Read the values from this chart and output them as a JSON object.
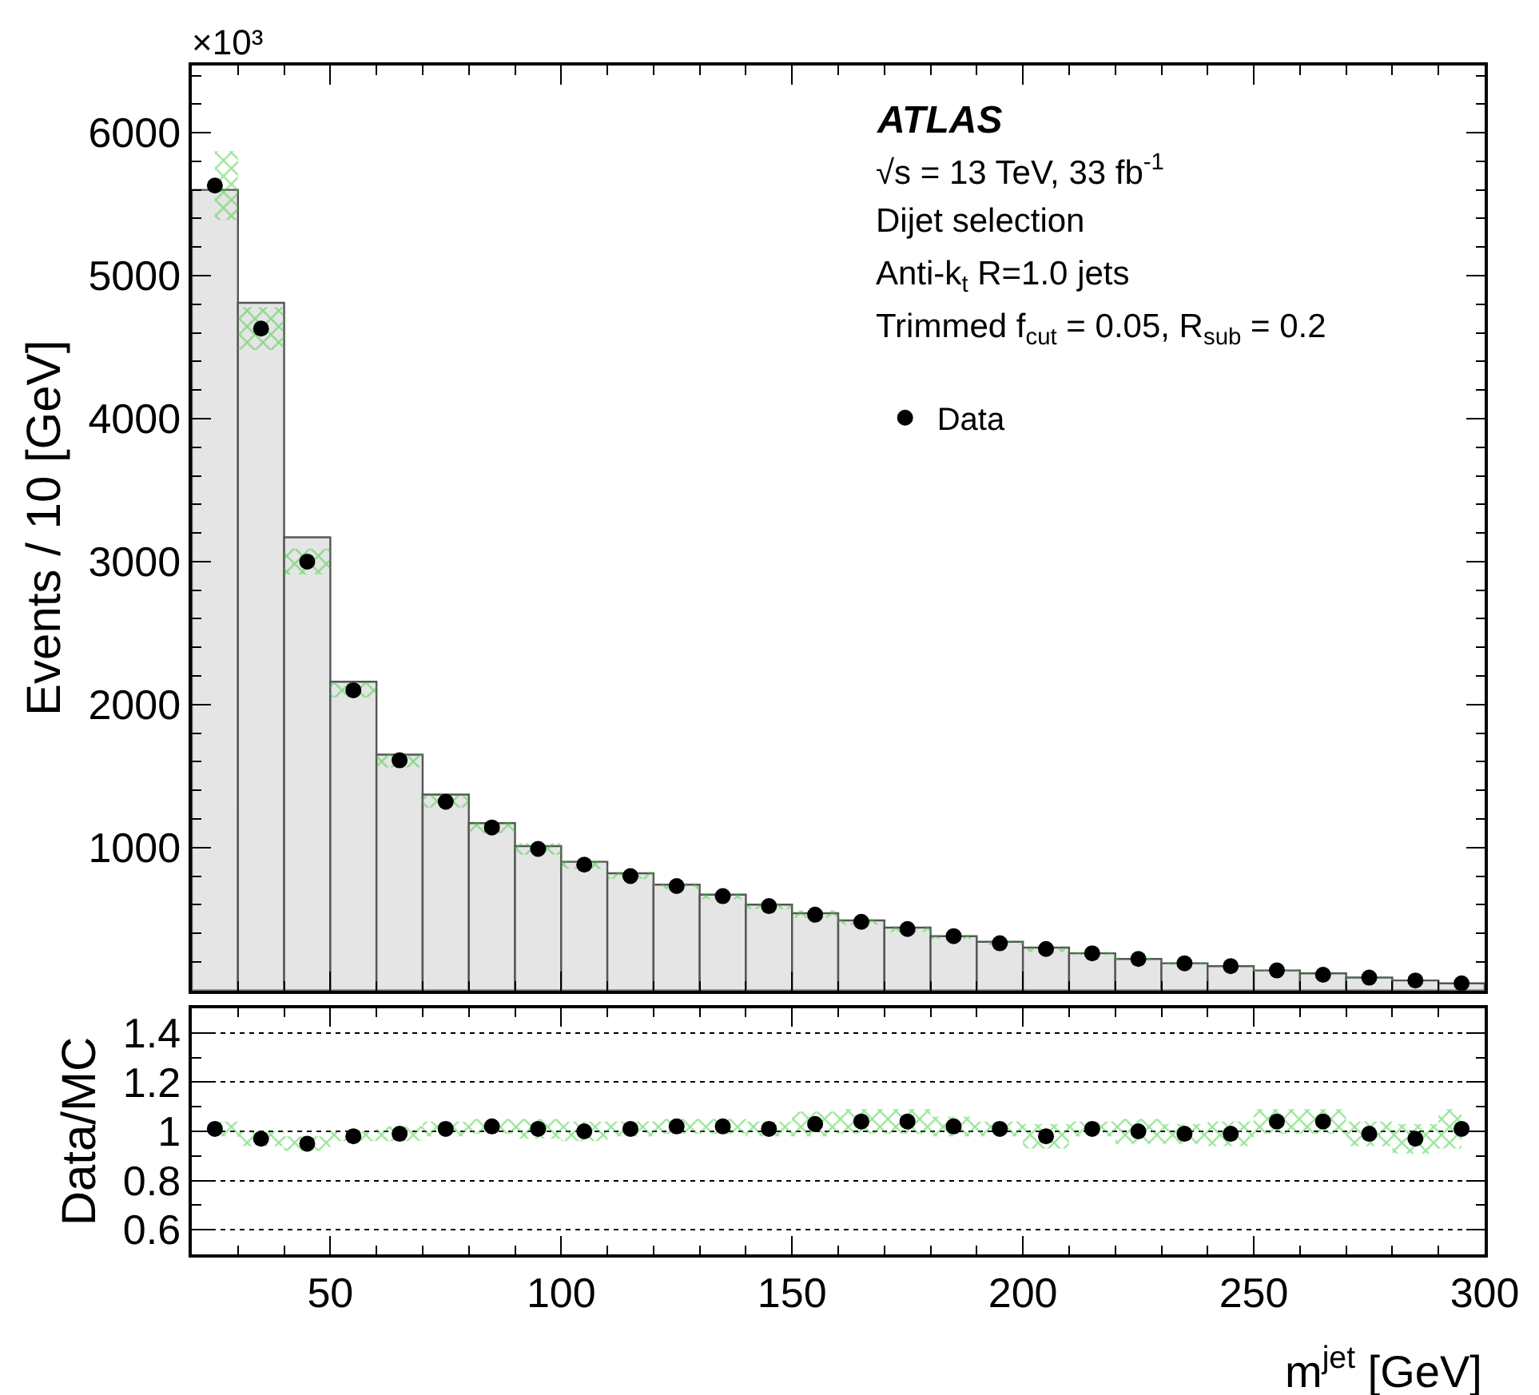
{
  "chart_data": [
    {
      "type": "scatter",
      "ylabel": "Events / 10 [GeV]",
      "xlim": [
        20,
        300
      ],
      "xticks": [
        50,
        100,
        150,
        200,
        250,
        300
      ],
      "ylim": [
        0,
        6470
      ],
      "yticks": [
        1000,
        2000,
        3000,
        4000,
        5000,
        6000
      ],
      "tick_labels": "y",
      "legend": "top right",
      "marker": "circle",
      "annotations": [
        "×10³",
        "ATLAS",
        "√s = 13 TeV, 33 fb$^{-1}$",
        "Dijet selection",
        "Anti-k$_{t}$ R=1.0 jets",
        "Trimmed f$_{cut}$ = 0.05, R$_{sub}$ = 0.2"
      ],
      "series": [
        {
          "type": "histogram",
          "color": "#e5e5e5",
          "bins": [
            20,
            30,
            40,
            50,
            60,
            70,
            80,
            90,
            100,
            110,
            120,
            130,
            140,
            150,
            160,
            170,
            180,
            190,
            200,
            210,
            220,
            230,
            240,
            250,
            260,
            270,
            280,
            290,
            300
          ],
          "values": [
            5600,
            4810,
            3170,
            2160,
            1650,
            1370,
            1170,
            1010,
            900,
            820,
            740,
            670,
            600,
            540,
            490,
            440,
            380,
            340,
            300,
            260,
            220,
            190,
            170,
            140,
            120,
            90,
            70,
            50
          ]
        },
        {
          "name": "Data",
          "color": "#000000",
          "x": [
            25,
            35,
            45,
            55,
            65,
            75,
            85,
            95,
            105,
            115,
            125,
            135,
            145,
            155,
            165,
            175,
            185,
            195,
            205,
            215,
            225,
            235,
            245,
            255,
            265,
            275,
            285,
            295
          ],
          "values": [
            5630,
            4630,
            3000,
            2100,
            1610,
            1320,
            1140,
            990,
            880,
            800,
            730,
            660,
            590,
            530,
            480,
            430,
            380,
            330,
            290,
            260,
            220,
            190,
            170,
            140,
            110,
            90,
            70,
            50
          ],
          "lower": [
            5390,
            4480,
            2910,
            2050,
            1560,
            1280,
            1100,
            950,
            850,
            780,
            710,
            640,
            570,
            510,
            460,
            410,
            360,
            320,
            270,
            250,
            210,
            180,
            160,
            130,
            110,
            80,
            70,
            50
          ],
          "upper": [
            5870,
            4780,
            3090,
            2150,
            1660,
            1360,
            1180,
            1030,
            910,
            830,
            750,
            680,
            610,
            560,
            500,
            450,
            390,
            340,
            300,
            270,
            230,
            200,
            170,
            150,
            120,
            90,
            70,
            50
          ]
        }
      ]
    },
    {
      "type": "scatter",
      "ylabel": "Data/MC",
      "xlabel": "m$^{jet}$ [GeV]",
      "xlim": [
        20,
        300
      ],
      "xticks": [
        50,
        100,
        150,
        200,
        250,
        300
      ],
      "ylim": [
        0.5,
        1.5
      ],
      "yticks": [
        0.6,
        0.8,
        1,
        1.2,
        1.4
      ],
      "grid": "y",
      "marker": "circle",
      "x": [
        25,
        35,
        45,
        55,
        65,
        75,
        85,
        95,
        105,
        115,
        125,
        135,
        145,
        155,
        165,
        175,
        185,
        195,
        205,
        215,
        225,
        235,
        245,
        255,
        265,
        275,
        285,
        295
      ],
      "series": [
        {
          "color": "#000000",
          "values": [
            1.01,
            0.97,
            0.95,
            0.98,
            0.99,
            1.01,
            1.02,
            1.01,
            1.0,
            1.01,
            1.02,
            1.02,
            1.01,
            1.03,
            1.04,
            1.04,
            1.02,
            1.01,
            0.98,
            1.01,
            1.0,
            0.99,
            0.99,
            1.04,
            1.04,
            0.99,
            0.97,
            1.01
          ],
          "lower": [
            0.98,
            0.94,
            0.92,
            0.96,
            0.96,
            0.98,
            0.99,
            0.97,
            0.96,
            0.98,
            0.99,
            0.99,
            0.98,
            0.98,
            0.99,
            0.99,
            0.98,
            0.98,
            0.93,
            0.98,
            0.95,
            0.95,
            0.94,
            0.99,
            0.99,
            0.94,
            0.91,
            0.93
          ],
          "upper": [
            1.04,
            1.0,
            0.98,
            1.0,
            1.02,
            1.04,
            1.05,
            1.05,
            1.04,
            1.04,
            1.05,
            1.05,
            1.04,
            1.08,
            1.09,
            1.09,
            1.06,
            1.04,
            1.03,
            1.04,
            1.05,
            1.03,
            1.04,
            1.09,
            1.09,
            1.04,
            1.03,
            1.09
          ]
        }
      ]
    }
  ]
}
